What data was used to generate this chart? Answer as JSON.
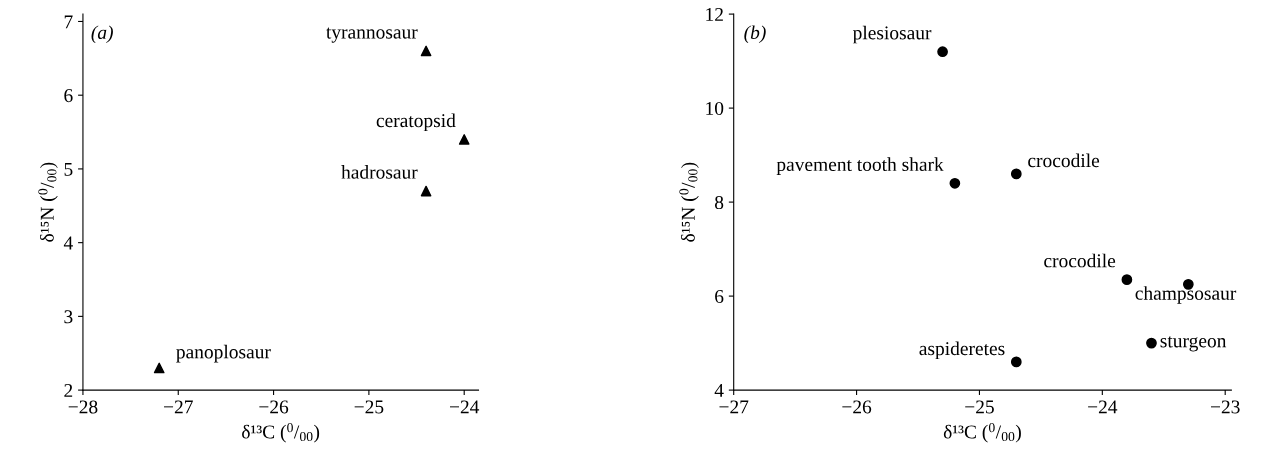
{
  "chart_data": [
    {
      "type": "scatter",
      "xlabel": "δ¹³C ($^{0}$/$_{00}$)",
      "ylabel": "δ¹⁵N ($^{0}$/$_{00}$)",
      "marker": "triangle",
      "series": [
        {
          "color": "#000000",
          "x": [
            -24.4,
            -24.0,
            -24.4,
            -27.2
          ],
          "values": [
            6.6,
            5.4,
            4.7,
            2.3
          ]
        }
      ],
      "xlim": [
        -28,
        -23.85
      ],
      "xticks": [
        {
          "value": -28,
          "label": "−28"
        },
        {
          "value": -27,
          "label": "−27"
        },
        {
          "value": -26,
          "label": "−26"
        },
        {
          "value": -25,
          "label": "−25"
        },
        {
          "value": -24,
          "label": "−24"
        }
      ],
      "ylim": [
        2,
        7.1
      ],
      "yticks": [
        2,
        3,
        4,
        5,
        6,
        7
      ],
      "grid": false,
      "annotations": [
        "(a)",
        {
          "text": "tyrannosaur",
          "x": -24.4,
          "y": 6.6
        },
        {
          "text": "ceratopsid",
          "x": -24.0,
          "y": 5.4
        },
        {
          "text": "hadrosaur",
          "x": -24.4,
          "y": 4.7
        },
        {
          "text": "panoplosaur",
          "x": -27.2,
          "y": 2.3
        }
      ]
    },
    {
      "type": "scatter",
      "xlabel": "δ¹³C ($^{0}$/$_{00}$)",
      "ylabel": "δ¹⁵N ($^{0}$/$_{00}$)",
      "marker": "circle",
      "series": [
        {
          "color": "#000000",
          "x": [
            -25.3,
            -25.2,
            -24.7,
            -23.8,
            -23.3,
            -23.6,
            -24.7
          ],
          "values": [
            11.2,
            8.4,
            8.6,
            6.35,
            6.25,
            5.0,
            4.6
          ]
        }
      ],
      "xlim": [
        -27,
        -22.95
      ],
      "xticks": [
        {
          "value": -27,
          "label": "−27"
        },
        {
          "value": -26,
          "label": "−26"
        },
        {
          "value": -25,
          "label": "−25"
        },
        {
          "value": -24,
          "label": "−24"
        },
        {
          "value": -23,
          "label": "−23"
        }
      ],
      "ylim": [
        4,
        12
      ],
      "yticks": [
        4,
        6,
        8,
        10,
        12
      ],
      "grid": false,
      "annotations": [
        "(b)",
        {
          "text": "plesiosaur",
          "x": -25.3,
          "y": 11.2
        },
        {
          "text": "pavement tooth shark",
          "x": -25.2,
          "y": 8.4
        },
        {
          "text": "crocodile",
          "x": -24.7,
          "y": 8.6
        },
        {
          "text": "crocodile",
          "x": -23.8,
          "y": 6.35
        },
        {
          "text": "champsosaur",
          "x": -23.3,
          "y": 6.25
        },
        {
          "text": "sturgeon",
          "x": -23.6,
          "y": 5.0
        },
        {
          "text": "aspideretes",
          "x": -24.7,
          "y": 4.6
        }
      ]
    }
  ]
}
